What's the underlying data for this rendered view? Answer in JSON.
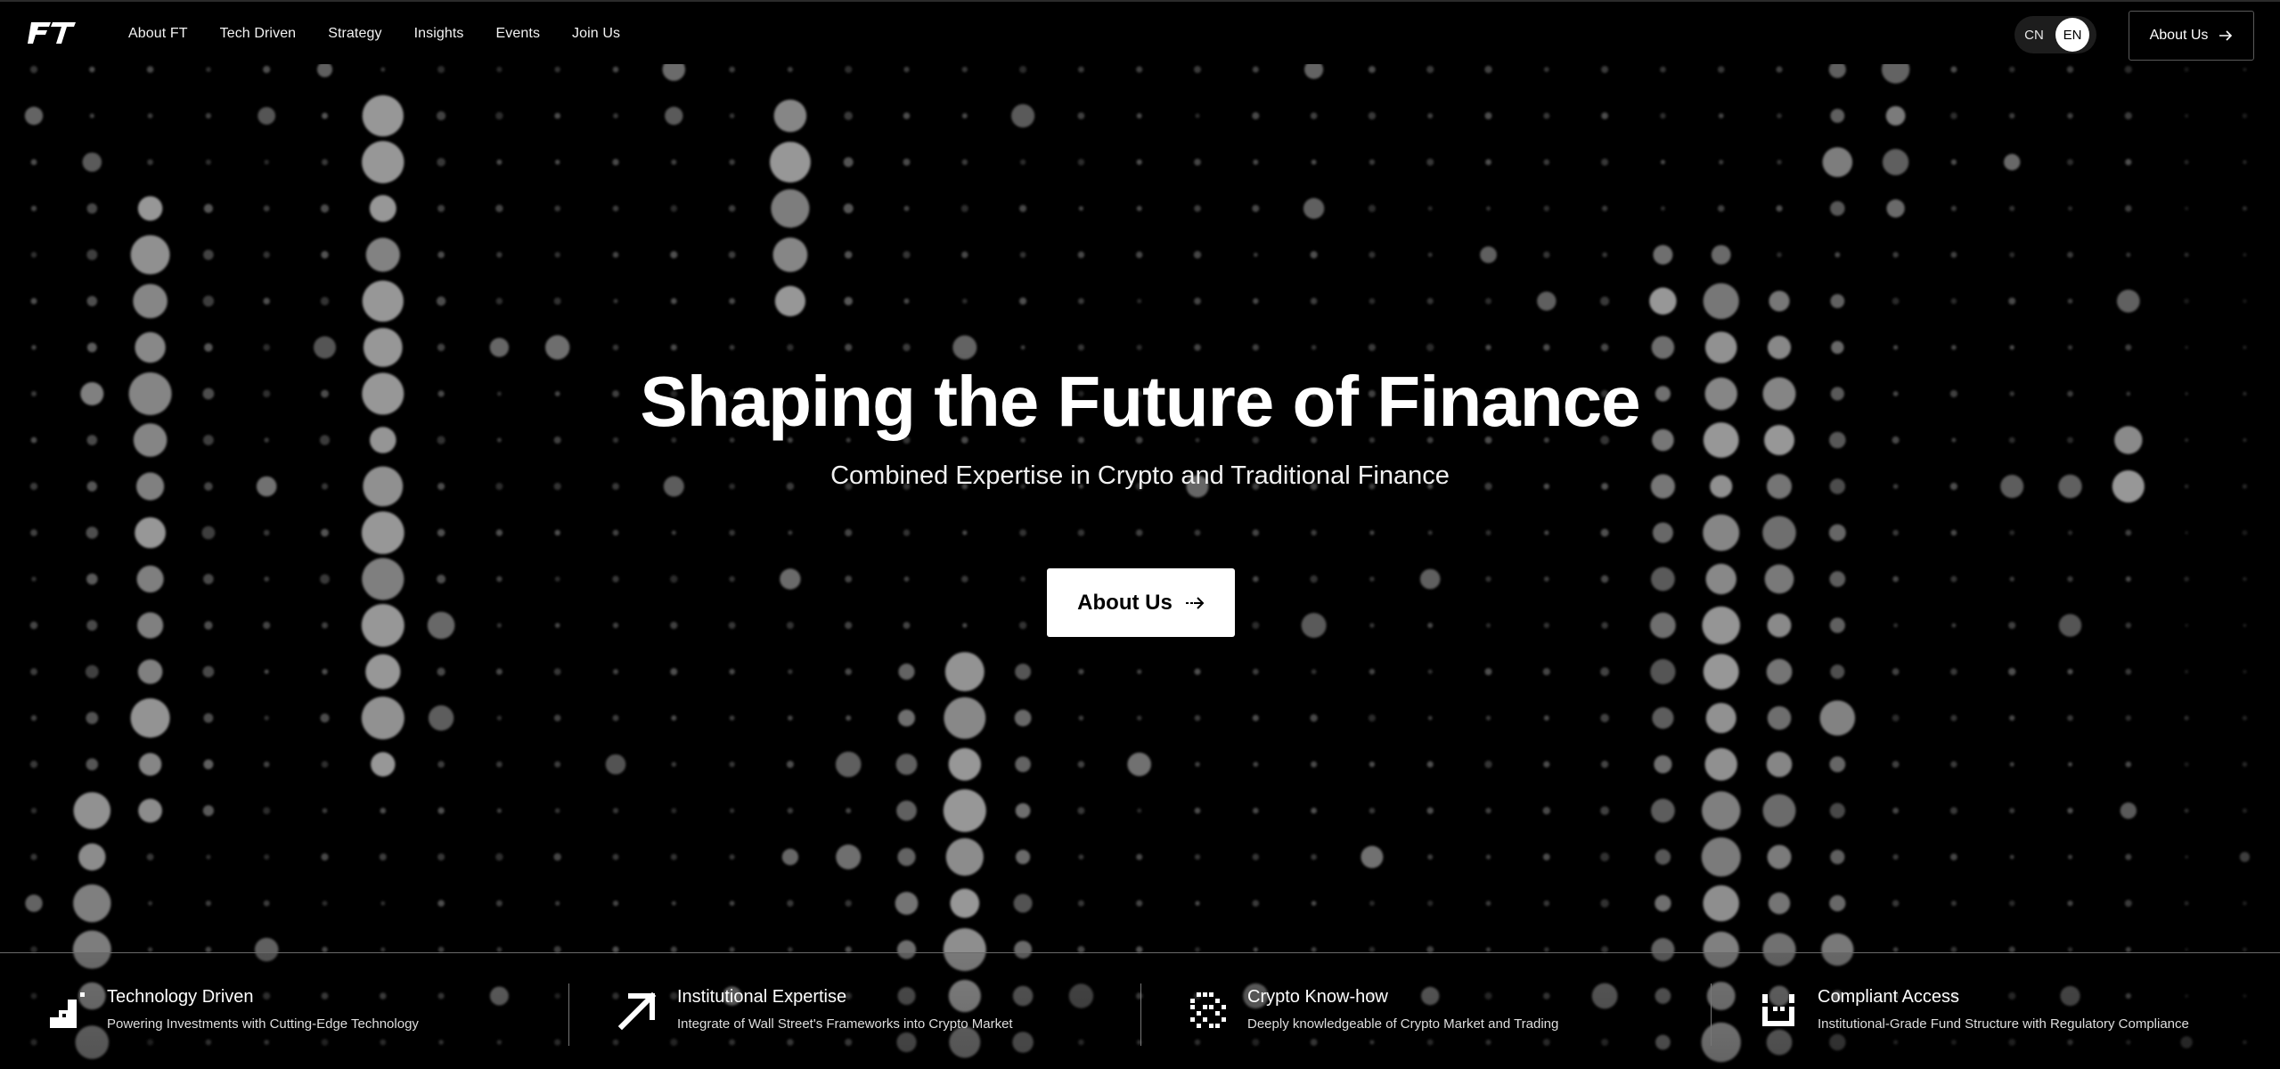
{
  "nav": {
    "logo_text": "FT",
    "items": [
      {
        "label": "About FT"
      },
      {
        "label": "Tech Driven"
      },
      {
        "label": "Strategy"
      },
      {
        "label": "Insights"
      },
      {
        "label": "Events"
      },
      {
        "label": "Join Us"
      }
    ],
    "lang_cn": "CN",
    "lang_en": "EN",
    "cta_label": "About Us"
  },
  "hero": {
    "title": "Shaping the Future of Finance",
    "subtitle": "Combined Expertise in Crypto and Traditional Finance",
    "cta_label": "About Us"
  },
  "features": [
    {
      "title": "Technology Driven",
      "desc": "Powering Investments with Cutting-Edge Technology",
      "icon": "steps-icon"
    },
    {
      "title": "Institutional Expertise",
      "desc": "Integrate of Wall Street's Frameworks into Crypto Market",
      "icon": "arrow-up-right-icon"
    },
    {
      "title": "Crypto Know-how",
      "desc": "Deeply knowledgeable of Crypto Market and Trading",
      "icon": "pixel-square-icon"
    },
    {
      "title": "Compliant Access",
      "desc": "Institutional-Grade Fund Structure with Regulatory Compliance",
      "icon": "bracket-cup-icon"
    }
  ],
  "colors": {
    "background": "#000000",
    "text": "#ffffff",
    "button_bg": "#ffffff",
    "button_text": "#000000"
  }
}
